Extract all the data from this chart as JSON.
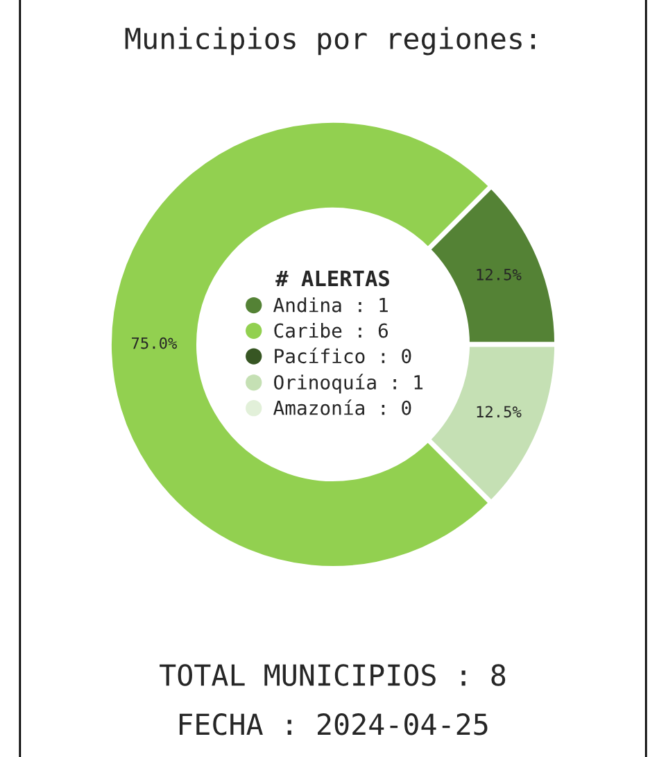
{
  "chart_data": {
    "type": "donut",
    "title": "Municipios por regiones:",
    "categories": [
      "Andina : 1",
      "Caribe : 6",
      "Pacífico : 0",
      "Orinoquía : 1",
      "Amazonía : 0"
    ],
    "values": [
      12.5,
      75.0,
      0,
      12.5,
      0
    ],
    "colors": [
      "#548235",
      "#92d050",
      "#375623",
      "#c5e0b4",
      "#e2f0d9"
    ],
    "value_labels": [
      "12.5%",
      "75.0%",
      null,
      "12.5%",
      null
    ],
    "legend": "center",
    "legend_title": "# ALERTAS",
    "annotations": [
      "TOTAL MUNICIPIOS : 8",
      "FECHA : 2024-04-25"
    ]
  }
}
